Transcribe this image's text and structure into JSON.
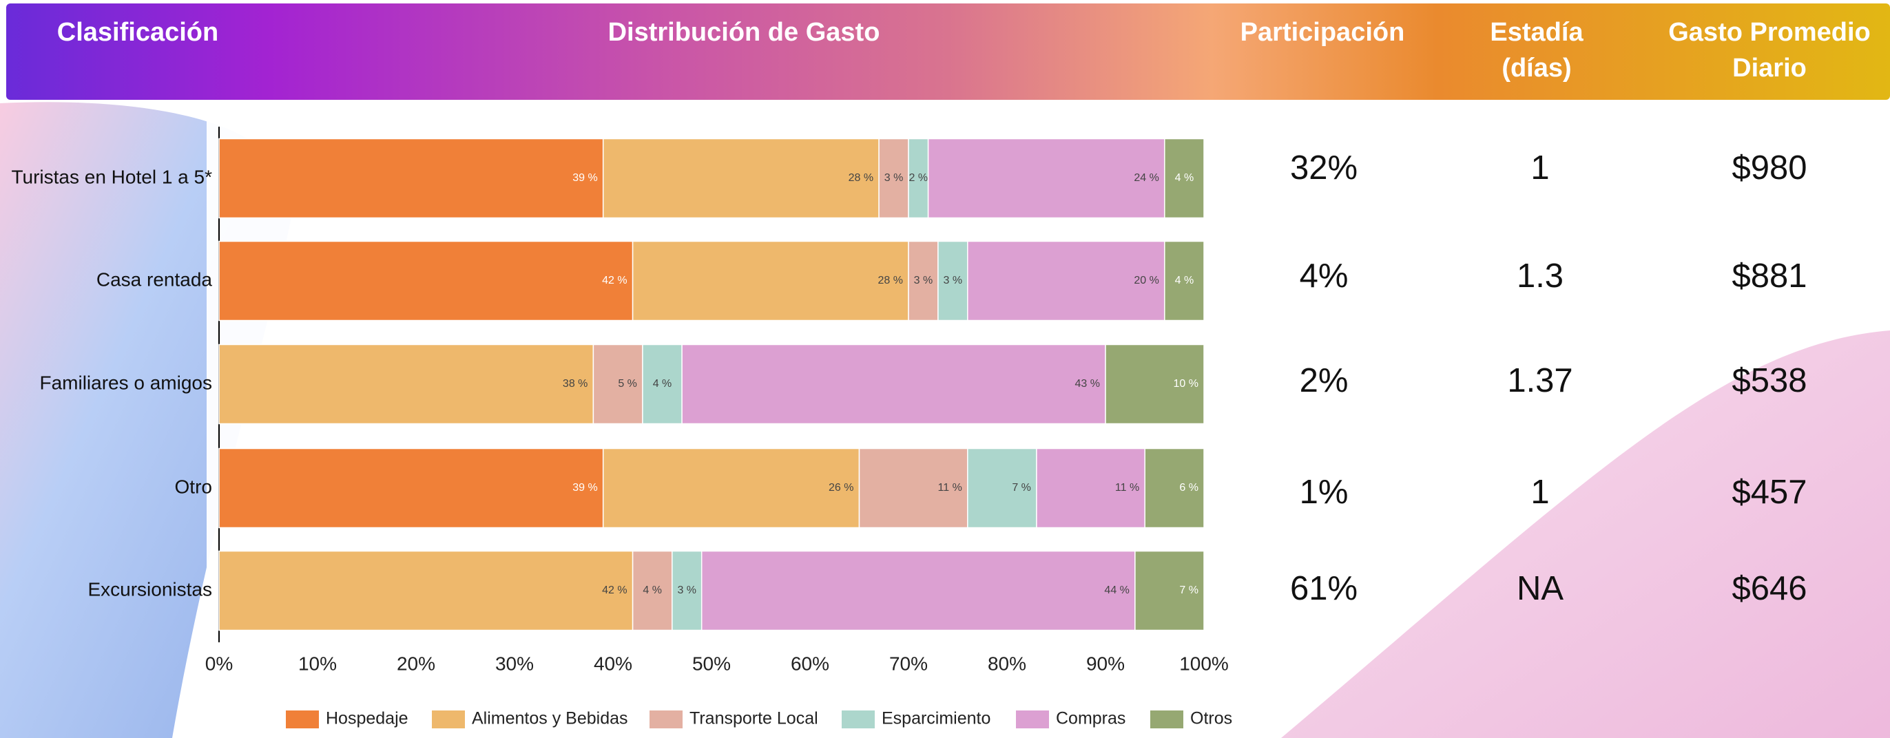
{
  "header": {
    "columns": [
      [
        "Clasificación"
      ],
      [
        "Distribución de Gasto"
      ],
      [
        "Participación"
      ],
      [
        "Estadía",
        "(días)"
      ],
      [
        "Gasto Promedio",
        "Diario"
      ]
    ]
  },
  "table": {
    "participacion": [
      "32%",
      "4%",
      "2%",
      "1%",
      "61%"
    ],
    "estadia": [
      "1",
      "1.3",
      "1.37",
      "1",
      "NA"
    ],
    "gasto": [
      "$980",
      "$881",
      "$538",
      "$457",
      "$646"
    ]
  },
  "chart_data": {
    "type": "stacked_hbar",
    "categories": [
      "Turistas en Hotel 1 a 5*",
      "Casa rentada",
      "Familiares o amigos",
      "Otro",
      "Excursionistas"
    ],
    "series": [
      {
        "name": "Hospedaje",
        "color": "#f08038",
        "values": [
          39,
          42,
          null,
          39,
          null
        ],
        "value_labels": [
          "39 %",
          "42 %",
          null,
          "39 %",
          null
        ]
      },
      {
        "name": "Alimentos y Bebidas",
        "color": "#eeb86c",
        "values": [
          28,
          28,
          38,
          26,
          42
        ],
        "value_labels": [
          "28 %",
          "28 %",
          "38 %",
          "26 %",
          "42 %"
        ]
      },
      {
        "name": "Transporte Local",
        "color": "#e3b0a2",
        "values": [
          3,
          3,
          5,
          11,
          4
        ],
        "value_labels": [
          "3 %",
          "3 %",
          "5 %",
          "11 %",
          "4 %"
        ]
      },
      {
        "name": "Esparcimiento",
        "color": "#acd6cc",
        "values": [
          2,
          3,
          4,
          7,
          3
        ],
        "value_labels": [
          "2 %",
          "3 %",
          "4 %",
          "7 %",
          "3 %"
        ]
      },
      {
        "name": "Compras",
        "color": "#dca0d2",
        "values": [
          24,
          20,
          43,
          11,
          44
        ],
        "value_labels": [
          "24 %",
          "20 %",
          "43 %",
          "11 %",
          "44 %"
        ]
      },
      {
        "name": "Otros",
        "color": "#96a872",
        "values": [
          4,
          4,
          10,
          6,
          7
        ],
        "value_labels": [
          "4 %",
          "4 %",
          "10 %",
          "6 %",
          "7 %"
        ]
      }
    ],
    "xlim": [
      0,
      100
    ],
    "xticks": [
      {
        "value": 0,
        "label": "0%"
      },
      {
        "value": 10,
        "label": "10%"
      },
      {
        "value": 20,
        "label": "20%"
      },
      {
        "value": 30,
        "label": "30%"
      },
      {
        "value": 40,
        "label": "40%"
      },
      {
        "value": 50,
        "label": "50%"
      },
      {
        "value": 60,
        "label": "60%"
      },
      {
        "value": 70,
        "label": "70%"
      },
      {
        "value": 80,
        "label": "80%"
      },
      {
        "value": 90,
        "label": "90%"
      },
      {
        "value": 100,
        "label": "100%"
      }
    ],
    "legend": "bottom"
  }
}
